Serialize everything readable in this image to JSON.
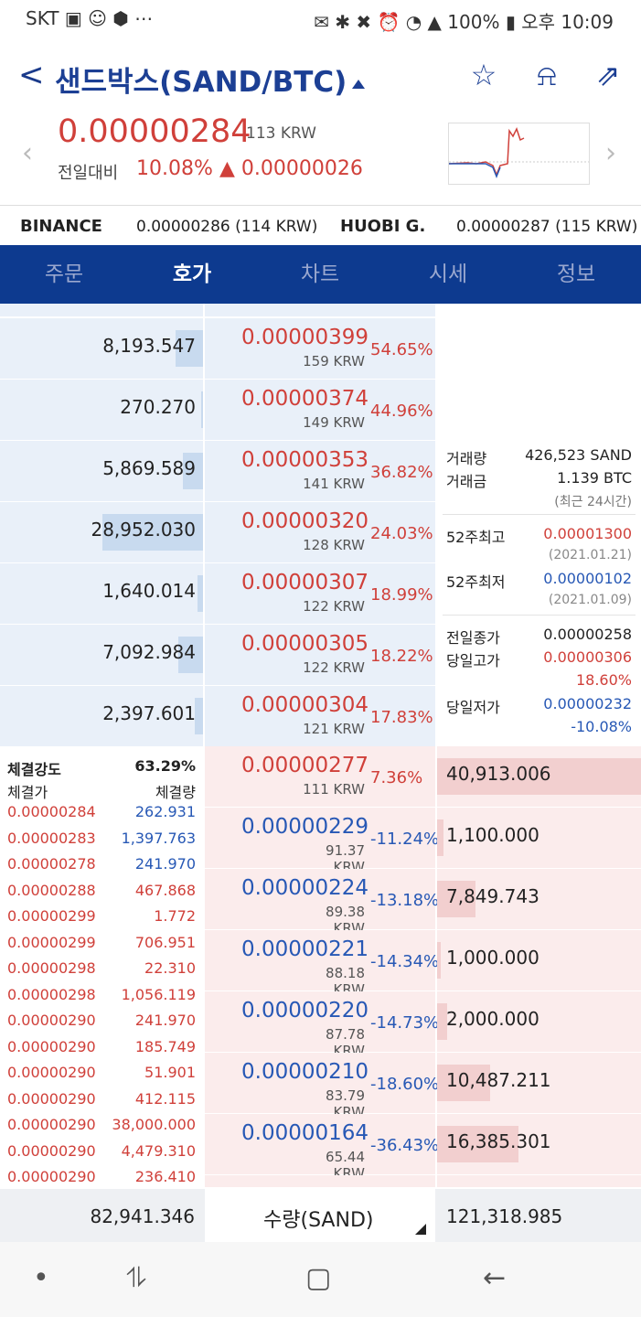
{
  "status": {
    "carrier": "SKT",
    "icons_left": "▣ ☺ ⬢ ⋯",
    "icons_right": "✉ ✱ ✖ ⏰ ◔ ▲ 100% ▮",
    "time": "오후 10:09"
  },
  "header": {
    "title": "샌드박스(SAND/BTC)",
    "back": "<",
    "star": "☆",
    "bell": "⍾",
    "share": "⇗"
  },
  "price": {
    "value": "0.00000284",
    "krw": "113 KRW",
    "change_label": "전일대비",
    "change_pct": "10.08%",
    "change_amt": "▲ 0.00000026"
  },
  "exchanges": [
    {
      "name": "BINANCE",
      "value": "0.00000286 (114 KRW)"
    },
    {
      "name": "HUOBI G.",
      "value": "0.00000287 (115 KRW)"
    }
  ],
  "tabs": [
    "주문",
    "호가",
    "차트",
    "시세",
    "정보"
  ],
  "asks": [
    {
      "qty": "8,193.547",
      "price": "0.00000399",
      "krw": "159 KRW",
      "pct": "54.65%",
      "bar": 0.19
    },
    {
      "qty": "270.270",
      "price": "0.00000374",
      "krw": "149 KRW",
      "pct": "44.96%",
      "bar": 0.01
    },
    {
      "qty": "5,869.589",
      "price": "0.00000353",
      "krw": "141 KRW",
      "pct": "36.82%",
      "bar": 0.14
    },
    {
      "qty": "28,952.030",
      "price": "0.00000320",
      "krw": "128 KRW",
      "pct": "24.03%",
      "bar": 0.7
    },
    {
      "qty": "1,640.014",
      "price": "0.00000307",
      "krw": "122 KRW",
      "pct": "18.99%",
      "bar": 0.04
    },
    {
      "qty": "7,092.984",
      "price": "0.00000305",
      "krw": "122 KRW",
      "pct": "18.22%",
      "bar": 0.17
    },
    {
      "qty": "2,397.601",
      "price": "0.00000304",
      "krw": "121 KRW",
      "pct": "17.83%",
      "bar": 0.06
    }
  ],
  "bids": [
    {
      "qty": "40,913.006",
      "price": "0.00000277",
      "krw": "111 KRW",
      "pct": "7.36%",
      "color": "red",
      "bar": 1.0
    },
    {
      "qty": "1,100.000",
      "price": "0.00000229",
      "krw": "91.37 KRW",
      "pct": "-11.24%",
      "color": "blue",
      "bar": 0.03
    },
    {
      "qty": "7,849.743",
      "price": "0.00000224",
      "krw": "89.38 KRW",
      "pct": "-13.18%",
      "color": "blue",
      "bar": 0.19
    },
    {
      "qty": "1,000.000",
      "price": "0.00000221",
      "krw": "88.18 KRW",
      "pct": "-14.34%",
      "color": "blue",
      "bar": 0.02
    },
    {
      "qty": "2,000.000",
      "price": "0.00000220",
      "krw": "87.78 KRW",
      "pct": "-14.73%",
      "color": "blue",
      "bar": 0.05
    },
    {
      "qty": "10,487.211",
      "price": "0.00000210",
      "krw": "83.79 KRW",
      "pct": "-18.60%",
      "color": "blue",
      "bar": 0.26
    },
    {
      "qty": "16,385.301",
      "price": "0.00000164",
      "krw": "65.44 KRW",
      "pct": "-36.43%",
      "color": "blue",
      "bar": 0.4
    }
  ],
  "info": {
    "vol_label": "거래량",
    "vol": "426,523 SAND",
    "amt_label": "거래금",
    "amt": "1.139 BTC",
    "period": "(최근 24시간)",
    "hi52_label": "52주최고",
    "hi52": "0.00001300",
    "hi52_date": "(2021.01.21)",
    "lo52_label": "52주최저",
    "lo52": "0.00000102",
    "lo52_date": "(2021.01.09)",
    "prev_label": "전일종가",
    "prev": "0.00000258",
    "dhi_label": "당일고가",
    "dhi": "0.00000306",
    "dhi_pct": "18.60%",
    "dlo_label": "당일저가",
    "dlo": "0.00000232",
    "dlo_pct": "-10.08%"
  },
  "trades": {
    "strength_label": "체결강도",
    "strength": "63.29%",
    "price_label": "체결가",
    "qty_label": "체결량",
    "rows": [
      {
        "p": "0.00000284",
        "q": "262.931",
        "qc": "blue"
      },
      {
        "p": "0.00000283",
        "q": "1,397.763",
        "qc": "blue"
      },
      {
        "p": "0.00000278",
        "q": "241.970",
        "qc": "blue"
      },
      {
        "p": "0.00000288",
        "q": "467.868",
        "qc": "red"
      },
      {
        "p": "0.00000299",
        "q": "1.772",
        "qc": "red"
      },
      {
        "p": "0.00000299",
        "q": "706.951",
        "qc": "red"
      },
      {
        "p": "0.00000298",
        "q": "22.310",
        "qc": "red"
      },
      {
        "p": "0.00000298",
        "q": "1,056.119",
        "qc": "red"
      },
      {
        "p": "0.00000290",
        "q": "241.970",
        "qc": "red"
      },
      {
        "p": "0.00000290",
        "q": "185.749",
        "qc": "red"
      },
      {
        "p": "0.00000290",
        "q": "51.901",
        "qc": "red"
      },
      {
        "p": "0.00000290",
        "q": "412.115",
        "qc": "red"
      },
      {
        "p": "0.00000290",
        "q": "38,000.000",
        "qc": "red"
      },
      {
        "p": "0.00000290",
        "q": "4,479.310",
        "qc": "red"
      },
      {
        "p": "0.00000290",
        "q": "236.410",
        "qc": "red"
      }
    ]
  },
  "bottom": {
    "ask_total": "82,941.346",
    "unit": "수량(SAND)",
    "bid_total": "121,318.985"
  },
  "nav": {
    "dot": "•",
    "recent": "⥮",
    "home": "▢",
    "back": "←"
  },
  "colors": {
    "red": "#d0403a",
    "blue": "#2758b5",
    "navy": "#0d3a8f"
  }
}
